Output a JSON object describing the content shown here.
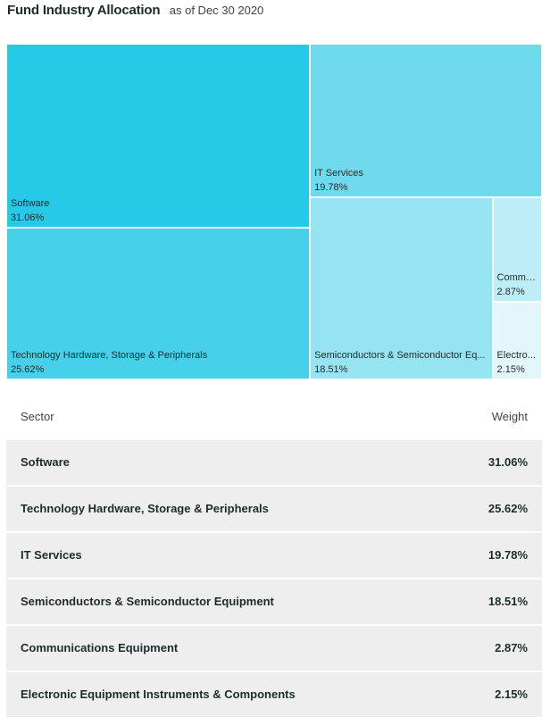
{
  "header": {
    "title": "Fund Industry Allocation",
    "as_of": "as of Dec 30 2020"
  },
  "table": {
    "col_sector": "Sector",
    "col_weight": "Weight"
  },
  "chart_data": {
    "type": "treemap",
    "title": "Fund Industry Allocation",
    "subtitle": "as of Dec 30 2020",
    "items": [
      {
        "name": "Software",
        "short_label": "Software",
        "value": 31.06,
        "display": "31.06%",
        "color": "#26c9e6"
      },
      {
        "name": "Technology Hardware, Storage & Peripherals",
        "short_label": "Technology Hardware, Storage & Peripherals",
        "value": 25.62,
        "display": "25.62%",
        "color": "#47d0ea"
      },
      {
        "name": "IT Services",
        "short_label": "IT Services",
        "value": 19.78,
        "display": "19.78%",
        "color": "#6fdaee"
      },
      {
        "name": "Semiconductors & Semiconductor Equipment",
        "short_label": "Semiconductors & Semiconductor Eq...",
        "value": 18.51,
        "display": "18.51%",
        "color": "#96e3f2"
      },
      {
        "name": "Communications Equipment",
        "short_label": "Commu...",
        "value": 2.87,
        "display": "2.87%",
        "color": "#bdedf6"
      },
      {
        "name": "Electronic Equipment Instruments & Components",
        "short_label": "Electro...",
        "value": 2.15,
        "display": "2.15%",
        "color": "#e3f6fa"
      }
    ]
  }
}
